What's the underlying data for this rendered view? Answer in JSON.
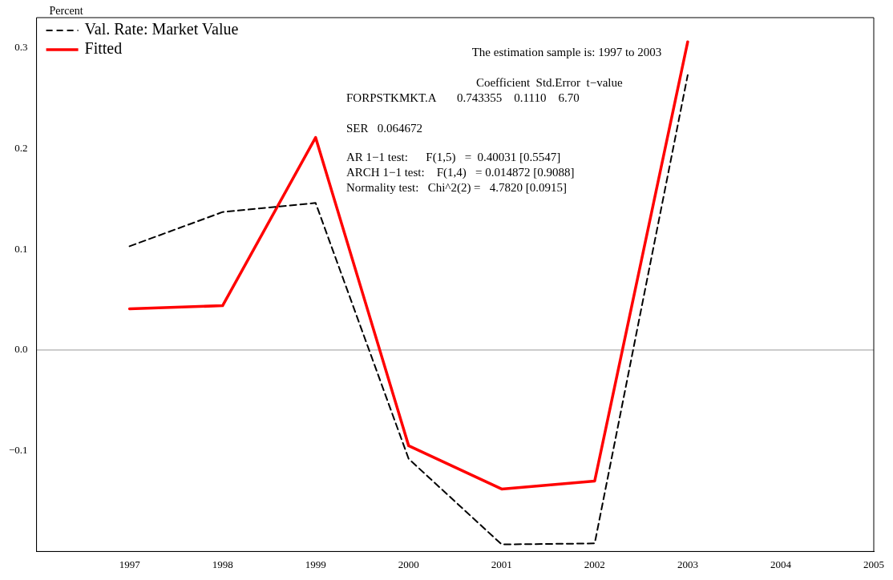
{
  "chart_data": {
    "type": "line",
    "ylabel": "Percent",
    "x": [
      1997,
      1998,
      1999,
      2000,
      2001,
      2002,
      2003
    ],
    "series": [
      {
        "name": "Val. Rate: Market Value",
        "color": "#000000",
        "line_style": "dashed",
        "values": [
          0.103,
          0.137,
          0.146,
          -0.108,
          -0.193,
          -0.192,
          0.273
        ]
      },
      {
        "name": "Fitted",
        "color": "#ff0000",
        "line_style": "solid",
        "values": [
          0.041,
          0.044,
          0.211,
          -0.095,
          -0.138,
          -0.13,
          0.306
        ]
      }
    ],
    "xlim": [
      1996,
      2005
    ],
    "xticks": [
      1997,
      1998,
      1999,
      2000,
      2001,
      2002,
      2003,
      2004,
      2005
    ],
    "ylim": [
      -0.2,
      0.33
    ],
    "yticks": [
      {
        "value": -0.1,
        "label": "−0.1"
      },
      {
        "value": 0,
        "label": "0.0"
      },
      0.1,
      0.2,
      0.3
    ],
    "ref_lines": [
      {
        "axis": "y",
        "value": 0,
        "color": "#999999"
      }
    ],
    "grid": false,
    "legend": "top left",
    "marker": "none",
    "annotations": [
      "The estimation sample is: 1997 to 2003",
      "Coefficient  Std.Error  t−value",
      "FORPSTKMKT.A       0.743355    0.1110    6.70",
      "SER   0.064672",
      "AR 1−1 test:      F(1,5)   =  0.40031 [0.5547]",
      "ARCH 1−1 test:    F(1,4)   = 0.014872 [0.9088]",
      "Normality test:   Chi^2(2) =   4.7820 [0.0915]"
    ]
  }
}
